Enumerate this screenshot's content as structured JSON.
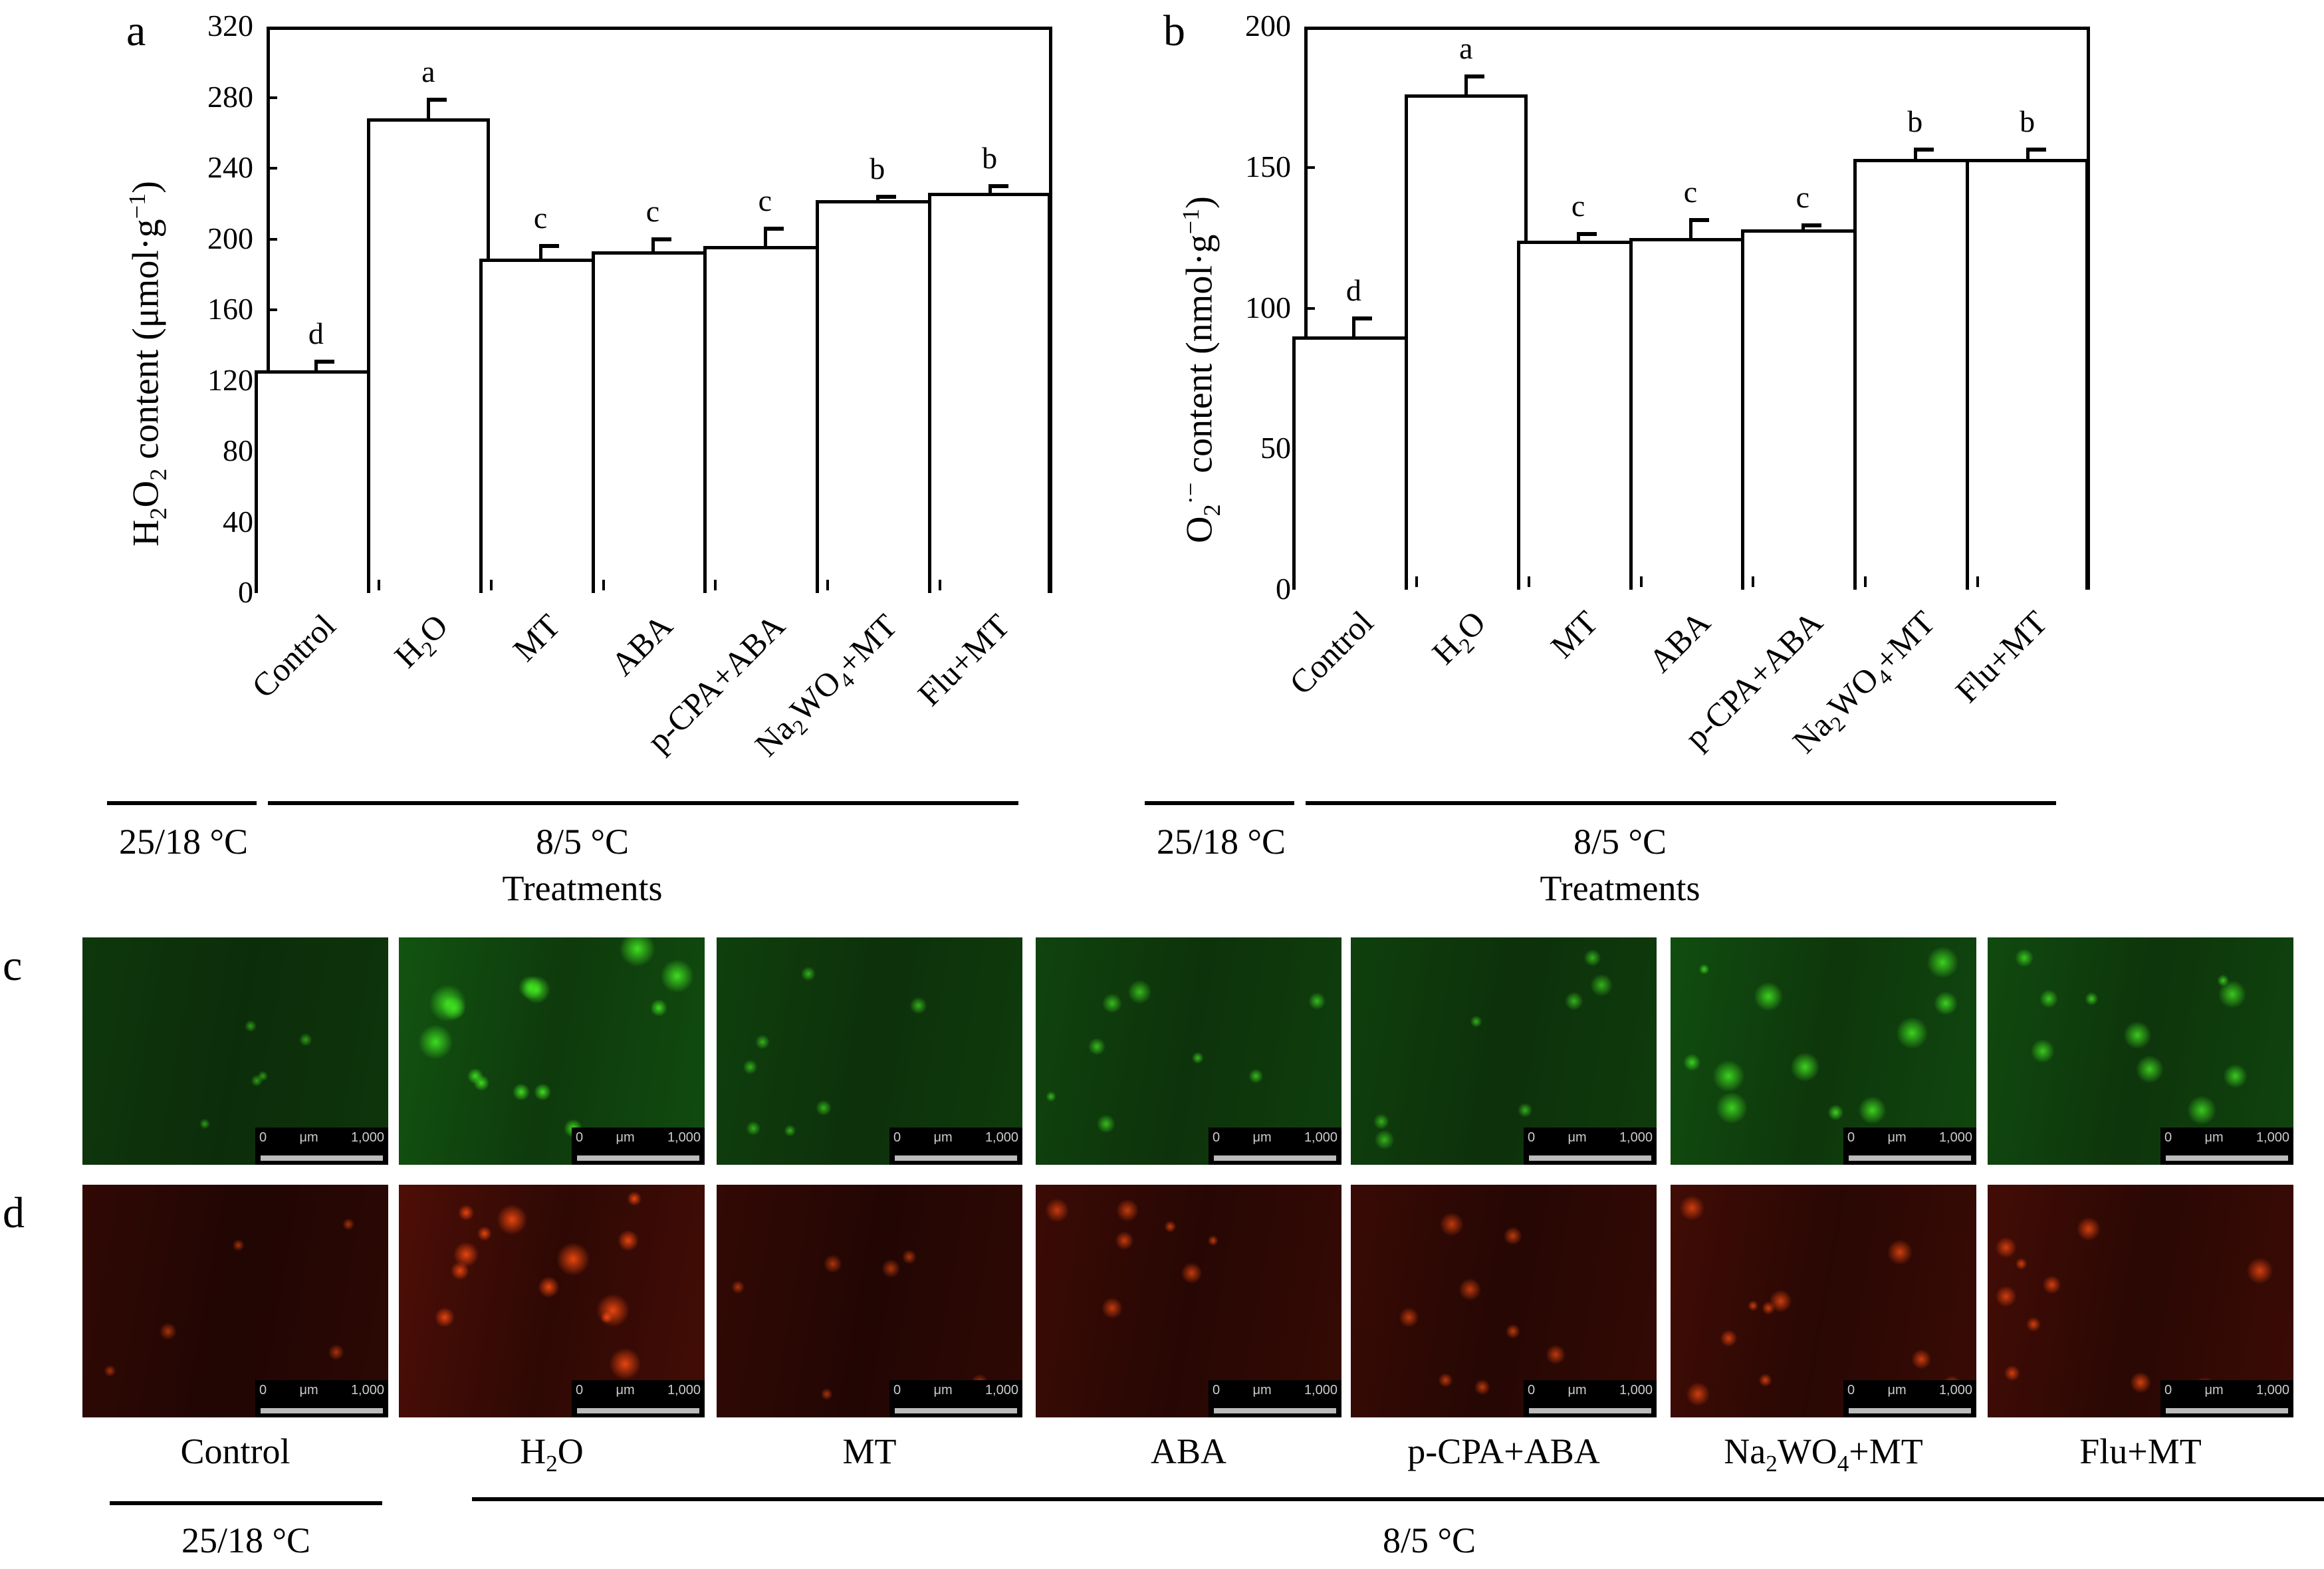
{
  "figure": {
    "panel_letters": [
      "a",
      "b",
      "c",
      "d"
    ],
    "x_axis_title": "Treatments",
    "temperature_groups": [
      "25/18 °C",
      "8/5 °C"
    ],
    "treatments": [
      "Control",
      "H2O",
      "MT",
      "ABA",
      "p-CPA+ABA",
      "Na2WO4+MT",
      "Flu+MT"
    ]
  },
  "chart_data": [
    {
      "panel": "a",
      "type": "bar",
      "title": "",
      "xlabel": "Treatments",
      "ylabel": "H2O2 content (μmol·g⁻¹)",
      "ylim": [
        0,
        320
      ],
      "yticks": [
        0,
        40,
        80,
        120,
        160,
        200,
        240,
        280,
        320
      ],
      "grid": false,
      "legend": "none",
      "categories": [
        "Control",
        "H2O",
        "MT",
        "ABA",
        "p-CPA+ABA",
        "Na2WO4+MT",
        "Flu+MT"
      ],
      "values": [
        126,
        268,
        189,
        193,
        196,
        222,
        226
      ],
      "errors": [
        6,
        12,
        8,
        8,
        11,
        3,
        5
      ],
      "significance": [
        "d",
        "a",
        "c",
        "c",
        "c",
        "b",
        "b"
      ],
      "groups": [
        {
          "label": "25/18 °C",
          "members": [
            "Control"
          ]
        },
        {
          "label": "8/5 °C",
          "members": [
            "H2O",
            "MT",
            "ABA",
            "p-CPA+ABA",
            "Na2WO4+MT",
            "Flu+MT"
          ]
        }
      ]
    },
    {
      "panel": "b",
      "type": "bar",
      "title": "",
      "xlabel": "Treatments",
      "ylabel": "O2·⁻ content (nmol·g⁻¹)",
      "ylim": [
        0,
        200
      ],
      "yticks": [
        0,
        50,
        100,
        150,
        200
      ],
      "grid": false,
      "legend": "none",
      "categories": [
        "Control",
        "H2O",
        "MT",
        "ABA",
        "p-CPA+ABA",
        "Na2WO4+MT",
        "Flu+MT"
      ],
      "values": [
        90,
        176,
        124,
        125,
        128,
        153,
        153
      ],
      "errors": [
        7,
        7,
        3,
        7,
        2,
        4,
        4
      ],
      "significance": [
        "d",
        "a",
        "c",
        "c",
        "c",
        "b",
        "b"
      ],
      "groups": [
        {
          "label": "25/18 °C",
          "members": [
            "Control"
          ]
        },
        {
          "label": "8/5 °C",
          "members": [
            "H2O",
            "MT",
            "ABA",
            "p-CPA+ABA",
            "Na2WO4+MT",
            "Flu+MT"
          ]
        }
      ]
    }
  ],
  "micrographs": {
    "row_c": {
      "stain_color": "#22c822",
      "background": "#0c2a0a",
      "intensity": [
        0.15,
        0.85,
        0.35,
        0.45,
        0.35,
        0.7,
        0.6
      ]
    },
    "row_d": {
      "stain_color": "#e02a10",
      "background": "#1c0503",
      "intensity": [
        0.2,
        0.8,
        0.25,
        0.45,
        0.4,
        0.55,
        0.6
      ]
    },
    "scale_bar": {
      "start": "0",
      "unit": "μm",
      "end": "1,000"
    },
    "labels": [
      "Control",
      "H2O",
      "MT",
      "ABA",
      "p-CPA+ABA",
      "Na2WO4+MT",
      "Flu+MT"
    ],
    "temperature_groups": [
      "25/18 °C",
      "8/5 °C"
    ]
  }
}
